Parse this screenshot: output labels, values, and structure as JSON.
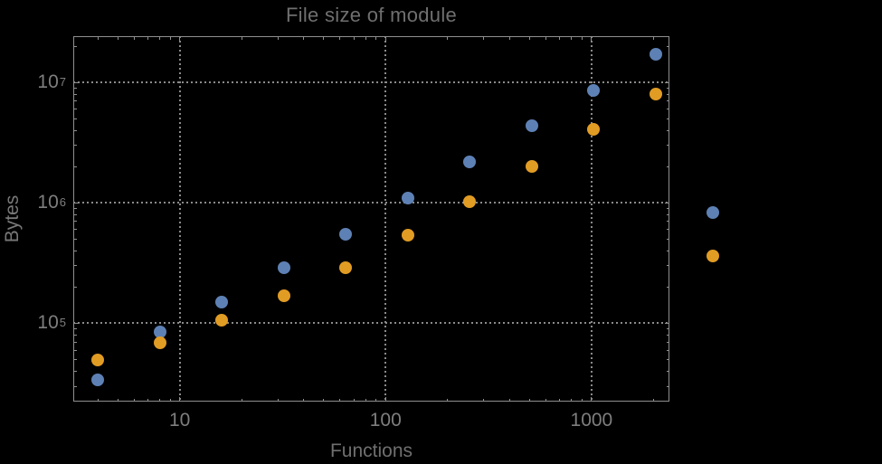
{
  "title": "File size of module",
  "axes": {
    "xlabel": "Functions",
    "ylabel": "Bytes"
  },
  "colors": {
    "background": "#000000",
    "frame": "#8f8f8f",
    "gridline": "#8a8a8a",
    "tick": "#8f8f8f",
    "title_text": "#6f6f6f",
    "axis_label_text": "#787878",
    "tick_label_text": "#7e7e7e",
    "series_blue": "#5E81B5",
    "series_orange": "#E19C24"
  },
  "chart_data": {
    "type": "scatter",
    "title": "File size of module",
    "xlabel": "Functions",
    "ylabel": "Bytes",
    "x_scale": "log",
    "y_scale": "log",
    "grid": "dotted lines at powers of 10, both axes",
    "legend": "none",
    "xlim": [
      3.04,
      2390
    ],
    "ylim": [
      22400,
      24200000
    ],
    "x_ticks_labeled": [
      10,
      100,
      1000
    ],
    "y_ticks_labeled": [
      "10^5",
      "10^6",
      "10^7"
    ],
    "x": [
      4,
      8,
      16,
      32,
      64,
      128,
      256,
      512,
      1024,
      2048,
      3900
    ],
    "series": [
      {
        "name": "blue",
        "color": "#5E81B5",
        "values": [
          34000,
          85500,
          151000,
          288000,
          546000,
          1090000,
          2180000,
          4360000,
          8550000,
          17100000,
          826000
        ]
      },
      {
        "name": "orange",
        "color": "#E19C24",
        "values": [
          49200,
          69500,
          106000,
          168000,
          288000,
          536000,
          1030000,
          2000000,
          4060000,
          7980000,
          360000
        ]
      }
    ],
    "annotation": "last pair of points (x ~3900) lies outside the right edge of the plot frame"
  }
}
